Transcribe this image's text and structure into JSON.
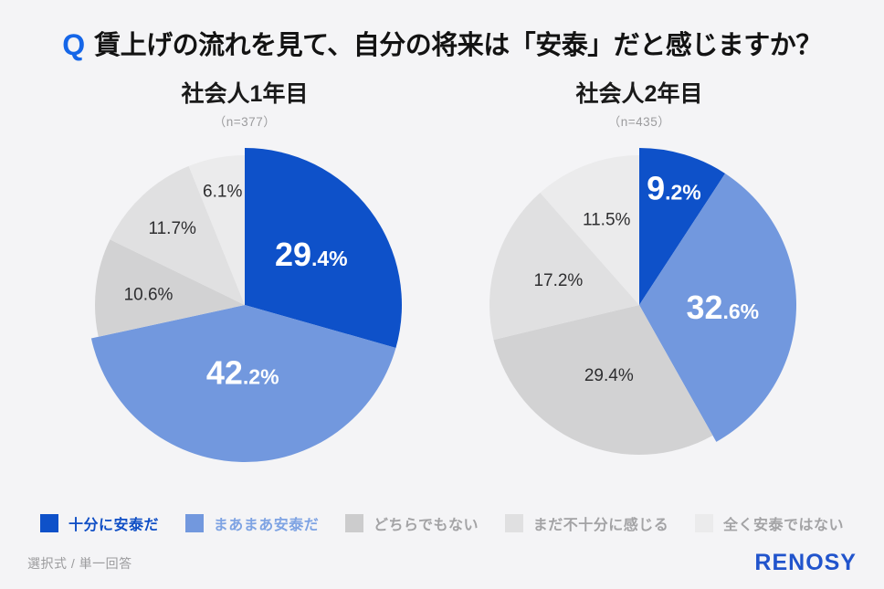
{
  "page": {
    "title_q": "Q",
    "title": "賃上げの流れを見て、自分の将来は「安泰」だと感じますか？",
    "footer_note": "選択式 / 単一回答",
    "brand": "RENOSY"
  },
  "colors": {
    "background": "#f4f4f6",
    "q_blue": "#1566e8",
    "primary_blue": "#0e51c9",
    "secondary_blue": "#7298de",
    "gray_neutral": "#d2d2d3",
    "gray_light": "#e0e0e1",
    "gray_lightest": "#ebebec",
    "muted_text": "#9b9b9d",
    "brand_blue": "#2154cc"
  },
  "legend": {
    "position": "bottom",
    "items": [
      {
        "label": "十分に安泰だ",
        "swatch_color": "#0e51c9",
        "text_color": "#0f4ec5"
      },
      {
        "label": "まあまあ安泰だ",
        "swatch_color": "#7298de",
        "text_color": "#7ea3e3"
      },
      {
        "label": "どちらでもない",
        "swatch_color": "#cccccd",
        "text_color": "#a3a3a5"
      },
      {
        "label": "まだ不十分に感じる",
        "swatch_color": "#e0e0e1",
        "text_color": "#a3a3a5"
      },
      {
        "label": "全く安泰ではない",
        "swatch_color": "#ebebec",
        "text_color": "#a3a3a5"
      }
    ]
  },
  "chart_data": [
    {
      "type": "pie",
      "title": "社会人1年目",
      "sample_label": "（n=377）",
      "start_angle_deg": 0,
      "direction": "clockwise",
      "slices": [
        {
          "label": "十分に安泰だ",
          "value": 29.4,
          "color": "#0e51c9",
          "text_style": "big-white",
          "label_r": 0.55
        },
        {
          "label": "まあまあ安泰だ",
          "value": 42.2,
          "color": "#7298de",
          "text_style": "big-white",
          "label_r": 0.45
        },
        {
          "label": "どちらでもない",
          "value": 10.6,
          "color": "#d2d2d3",
          "text_style": "dark",
          "label_r": 0.64
        },
        {
          "label": "まだ不十分に感じる",
          "value": 11.7,
          "color": "#e0e0e1",
          "text_style": "dark",
          "label_r": 0.7
        },
        {
          "label": "全く安泰ではない",
          "value": 6.1,
          "color": "#ebebec",
          "text_style": "dark",
          "label_r": 0.77
        }
      ]
    },
    {
      "type": "pie",
      "title": "社会人2年目",
      "sample_label": "（n=435）",
      "start_angle_deg": 0,
      "direction": "clockwise",
      "slices": [
        {
          "label": "十分に安泰だ",
          "value": 9.2,
          "color": "#0e51c9",
          "text_style": "big-white",
          "label_r": 0.8
        },
        {
          "label": "まあまあ安泰だ",
          "value": 32.6,
          "color": "#7298de",
          "text_style": "big-white",
          "label_r": 0.55
        },
        {
          "label": "どちらでもない",
          "value": 29.4,
          "color": "#d2d2d3",
          "text_style": "dark",
          "label_r": 0.5
        },
        {
          "label": "まだ不十分に感じる",
          "value": 17.2,
          "color": "#e0e0e1",
          "text_style": "dark",
          "label_r": 0.56
        },
        {
          "label": "全く安泰ではない",
          "value": 11.5,
          "color": "#ebebec",
          "text_style": "dark",
          "label_r": 0.61
        }
      ]
    }
  ]
}
